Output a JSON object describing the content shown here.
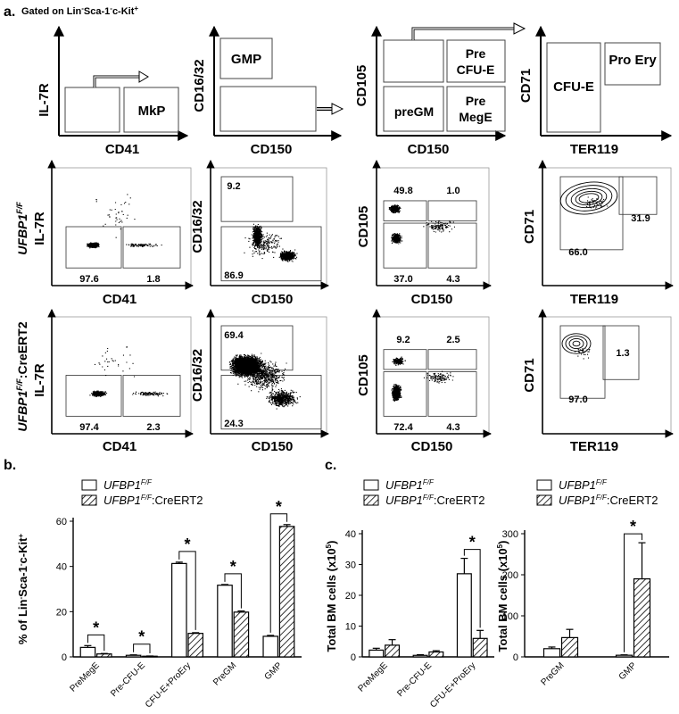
{
  "panel_labels": {
    "a": "a.",
    "b": "b.",
    "c": "c."
  },
  "gating_title_parts": [
    "Gated on Lin",
    "-",
    "Sca-1",
    "-",
    "c-Kit",
    "+"
  ],
  "schema": {
    "s1": {
      "y": "IL-7R",
      "x": "CD41",
      "box": "MkP"
    },
    "s2": {
      "y": "CD16/32",
      "x": "CD150",
      "box": "GMP"
    },
    "s3": {
      "y": "CD105",
      "x": "CD150",
      "boxes": [
        "Pre",
        "CFU-E",
        "preGM",
        "Pre",
        "MegE"
      ]
    },
    "s4": {
      "y": "CD71",
      "x": "TER119",
      "boxes": [
        "CFU-E",
        "Pro Ery"
      ]
    }
  },
  "row_labels": {
    "r1": {
      "gene": "UFBP1",
      "sup": "F/F",
      "marker": "IL-7R"
    },
    "r2": {
      "gene": "UFBP1",
      "sup": "F/F",
      "suffix": ":CreERT2",
      "marker": "IL-7R"
    }
  },
  "flow_plots": {
    "row1": {
      "p1": {
        "x": "CD41",
        "y": "IL-7R",
        "values": [
          "97.6",
          "1.8"
        ]
      },
      "p2": {
        "x": "CD150",
        "y": "CD16/32",
        "values": [
          "9.2",
          "86.9"
        ]
      },
      "p3": {
        "x": "CD150",
        "y": "CD105",
        "values": [
          "49.8",
          "1.0",
          "37.0",
          "4.3"
        ]
      },
      "p4": {
        "x": "TER119",
        "y": "CD71",
        "values": [
          "31.9",
          "66.0"
        ]
      }
    },
    "row2": {
      "p1": {
        "x": "CD41",
        "y": "IL-7R",
        "values": [
          "97.4",
          "2.3"
        ]
      },
      "p2": {
        "x": "CD150",
        "y": "CD16/32",
        "values": [
          "69.4",
          "24.3"
        ]
      },
      "p3": {
        "x": "CD150",
        "y": "CD105",
        "values": [
          "9.2",
          "2.5",
          "72.4",
          "4.3"
        ]
      },
      "p4": {
        "x": "TER119",
        "y": "CD71",
        "values": [
          "97.0",
          "1.3"
        ]
      }
    }
  },
  "legend": {
    "s1_gene": "UFBP1",
    "s1_sup": "F/F",
    "s2_gene": "UFBP1",
    "s2_sup": "F/F",
    "s2_suffix": ":CreERT2"
  },
  "significance": "*",
  "colors": {
    "bar_outline": "#000000",
    "bar_fill_wt": "#ffffff",
    "hatch": "#000000"
  },
  "chart_data": [
    {
      "type": "bar",
      "panel": "b",
      "ylabel_parts": [
        "% of Lin",
        "-",
        "Sca-1",
        "-",
        "c-Kit",
        "+"
      ],
      "categories": [
        "PreMegE",
        "Pre-CFU-E",
        "CFU-E+ProEry",
        "PreGM",
        "GMP"
      ],
      "series": [
        {
          "name": "UFBP1 F/F",
          "values": [
            4.2,
            0.7,
            41.3,
            31.7,
            9.1
          ],
          "errors": [
            0.8,
            0.2,
            0.6,
            0.3,
            0.4
          ]
        },
        {
          "name": "UFBP1 F/F:CreERT2",
          "values": [
            1.3,
            0.3,
            10.4,
            19.8,
            57.7
          ],
          "errors": [
            0.2,
            0.1,
            0.3,
            0.5,
            0.8
          ]
        }
      ],
      "ylim": [
        0,
        60
      ],
      "yticks": [
        "0",
        "20",
        "40",
        "60"
      ],
      "significant": [
        true,
        true,
        true,
        true,
        true
      ]
    },
    {
      "type": "bar",
      "panel": "c-left",
      "ylabel": "Total BM cells (x10",
      "ylabel_sup": "5",
      "ylabel_end": ")",
      "categories": [
        "PreMegE",
        "Pre-CFU-E",
        "CFU-E+ProEry"
      ],
      "series": [
        {
          "name": "UFBP1 F/F",
          "values": [
            2.2,
            0.5,
            27.0
          ],
          "errors": [
            0.6,
            0.2,
            5.0
          ]
        },
        {
          "name": "UFBP1 F/F:CreERT2",
          "values": [
            3.8,
            1.6,
            6.0
          ],
          "errors": [
            1.8,
            0.4,
            2.6
          ]
        }
      ],
      "ylim": [
        0,
        40
      ],
      "yticks": [
        "0",
        "10",
        "20",
        "30",
        "40"
      ],
      "significant": [
        false,
        false,
        true
      ]
    },
    {
      "type": "bar",
      "panel": "c-right",
      "ylabel": "Total BM cells (x10",
      "ylabel_sup": "5",
      "ylabel_end": ")",
      "categories": [
        "PreGM",
        "GMP"
      ],
      "series": [
        {
          "name": "UFBP1 F/F",
          "values": [
            20.0,
            4.0
          ],
          "errors": [
            4.0,
            1.0
          ]
        },
        {
          "name": "UFBP1 F/F:CreERT2",
          "values": [
            47.0,
            190.0
          ],
          "errors": [
            20.0,
            88.0
          ]
        }
      ],
      "ylim": [
        0,
        300
      ],
      "yticks": [
        "0",
        "100",
        "200",
        "300"
      ],
      "significant": [
        false,
        true
      ]
    }
  ]
}
